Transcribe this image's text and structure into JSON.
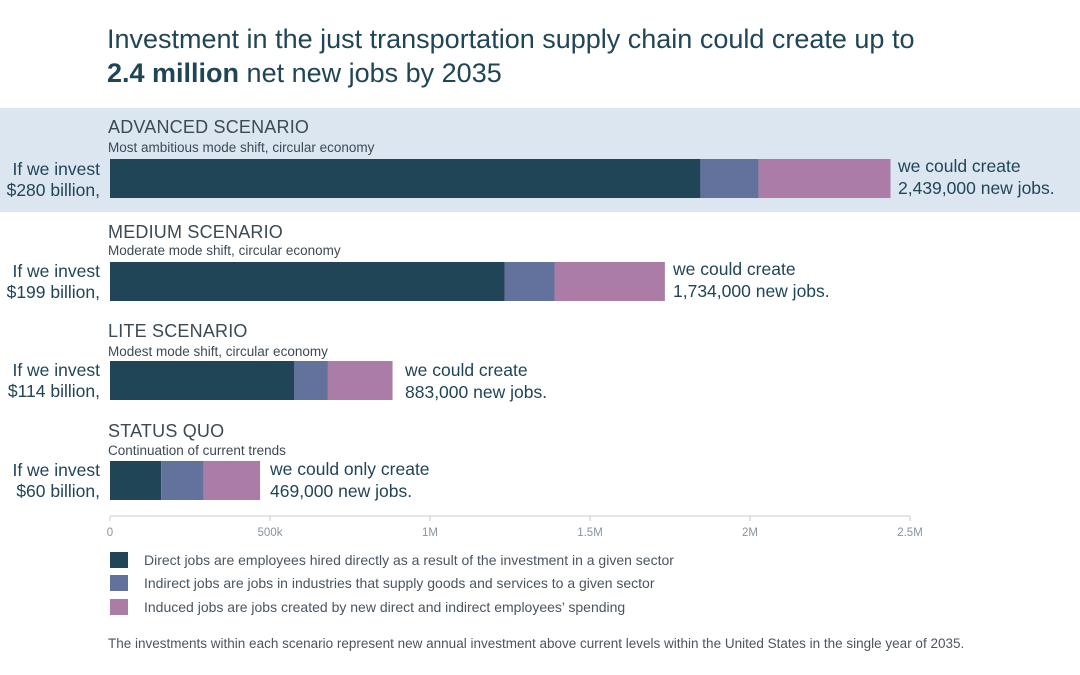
{
  "title": {
    "line1": "Investment in the just transportation supply chain could create up to",
    "bold": "2.4 million",
    "rest": " net new jobs by 2035"
  },
  "colors": {
    "direct": "#1f4557",
    "indirect": "#62729c",
    "induced": "#ab7ca6",
    "highlight": "#dce6f1",
    "axis": "#c8ced4",
    "tick": "#8a949c"
  },
  "scenarios": [
    {
      "name": "ADVANCED SCENARIO",
      "subtitle": "Most ambitious mode shift, circular economy",
      "invest_line1": "If we invest",
      "invest_line2": "$280 billion,",
      "result_line1": "we could create",
      "result_line2": "2,439,000 new jobs."
    },
    {
      "name": "MEDIUM SCENARIO",
      "subtitle": "Moderate mode shift, circular economy",
      "invest_line1": "If we invest",
      "invest_line2": "$199 billion,",
      "result_line1": "we could create",
      "result_line2": "1,734,000 new jobs."
    },
    {
      "name": "LITE SCENARIO",
      "subtitle": "Modest mode shift, circular economy",
      "invest_line1": "If we invest",
      "invest_line2": "$114 billion,",
      "result_line1": "we could create",
      "result_line2": "883,000 new jobs."
    },
    {
      "name": "STATUS QUO",
      "subtitle": "Continuation of current trends",
      "invest_line1": "If we invest",
      "invest_line2": "$60 billion,",
      "result_line1": "we could only create",
      "result_line2": "469,000 new jobs."
    }
  ],
  "chart_data": {
    "type": "bar",
    "orientation": "horizontal",
    "stacked": true,
    "categories": [
      "ADVANCED SCENARIO",
      "MEDIUM SCENARIO",
      "LITE SCENARIO",
      "STATUS QUO"
    ],
    "series": [
      {
        "name": "Direct",
        "values": [
          1845000,
          1233000,
          575000,
          160000
        ]
      },
      {
        "name": "Indirect",
        "values": [
          182000,
          156000,
          106000,
          133000
        ]
      },
      {
        "name": "Induced",
        "values": [
          412000,
          345000,
          202000,
          176000
        ]
      }
    ],
    "xlim": [
      0,
      2500000
    ],
    "xticks": [
      0,
      500000,
      1000000,
      1500000,
      2000000,
      2500000
    ],
    "xtick_labels": [
      "0",
      "500k",
      "1M",
      "1.5M",
      "2M",
      "2.5M"
    ],
    "grid": false
  },
  "legend": [
    {
      "label": "Direct jobs are employees hired directly as a result of the investment in a given sector"
    },
    {
      "label": "Indirect jobs are jobs in industries that supply goods and services to a given sector"
    },
    {
      "label": "Induced jobs are jobs created by new direct and indirect employees’ spending"
    }
  ],
  "footnote": "The investments within each scenario represent new annual investment above current levels within the United States in the single year of 2035."
}
